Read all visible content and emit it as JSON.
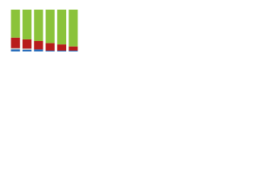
{
  "chart_data": {
    "type": "stacked-bar",
    "categories": [
      null,
      null,
      null,
      null,
      null,
      null
    ],
    "series": [
      {
        "color": "#2a6ebb",
        "values": [
          5,
          4,
          5,
          2,
          2,
          2
        ]
      },
      {
        "color": "#c8c8c8",
        "values": [
          3,
          3,
          0,
          0,
          0,
          0
        ]
      },
      {
        "color": "#b81c1c",
        "values": [
          25,
          22,
          20,
          18,
          15,
          10
        ]
      },
      {
        "color": "#8bc33a",
        "values": [
          67,
          71,
          75,
          80,
          83,
          88
        ]
      }
    ],
    "ylim": [
      0,
      100
    ]
  }
}
